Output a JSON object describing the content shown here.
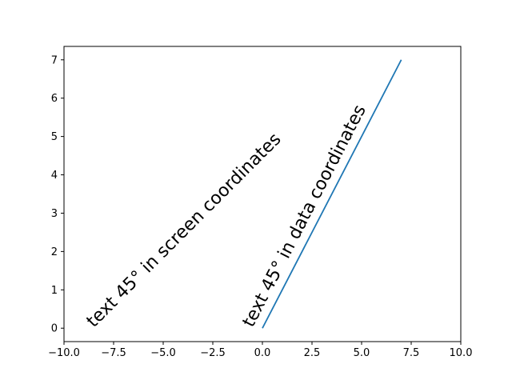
{
  "chart_data": {
    "type": "line",
    "title": "",
    "xlabel": "",
    "ylabel": "",
    "xlim": [
      -10,
      10
    ],
    "ylim": [
      -0.35,
      7.35
    ],
    "grid": false,
    "x_ticks": [
      -10,
      -7.5,
      -5,
      -2.5,
      0,
      2.5,
      5,
      7.5,
      10
    ],
    "x_tick_labels": [
      "−10.0",
      "−7.5",
      "−5.0",
      "−2.5",
      "0.0",
      "2.5",
      "5.0",
      "7.5",
      "10.0"
    ],
    "y_ticks": [
      0,
      1,
      2,
      3,
      4,
      5,
      6,
      7
    ],
    "y_tick_labels": [
      "0",
      "1",
      "2",
      "3",
      "4",
      "5",
      "6",
      "7"
    ],
    "series": [
      {
        "x": [
          0,
          7
        ],
        "y": [
          0,
          7
        ],
        "color": "#1f77b4"
      }
    ],
    "annotations": [
      {
        "text": "text 45° in screen coordinates",
        "x": -8.5,
        "y": 0,
        "rotation_deg": 45,
        "rotation_mode": "screen"
      },
      {
        "text": "text 45° in data coordinates",
        "x": -0.5,
        "y": 0,
        "rotation_deg": 45,
        "rotation_mode": "data"
      }
    ]
  }
}
